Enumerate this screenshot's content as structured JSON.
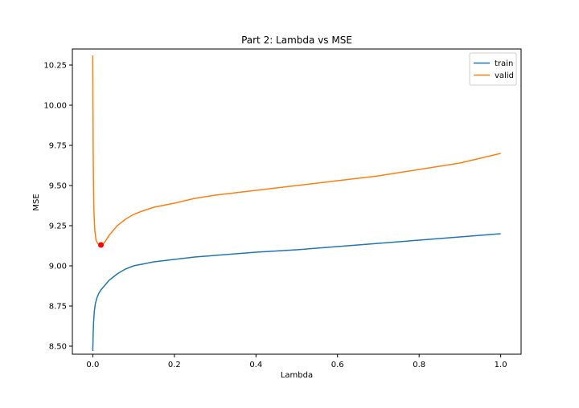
{
  "chart_data": {
    "type": "line",
    "title": "Part 2: Lambda vs MSE",
    "xlabel": "Lambda",
    "ylabel": "MSE",
    "xlim": [
      -0.05,
      1.05
    ],
    "ylim": [
      8.45,
      10.35
    ],
    "xticks": [
      0.0,
      0.2,
      0.4,
      0.6,
      0.8,
      1.0
    ],
    "xtick_labels": [
      "0.0",
      "0.2",
      "0.4",
      "0.6",
      "0.8",
      "1.0"
    ],
    "yticks": [
      8.5,
      8.75,
      9.0,
      9.25,
      9.5,
      9.75,
      10.0,
      10.25
    ],
    "ytick_labels": [
      "8.50",
      "8.75",
      "9.00",
      "9.25",
      "9.50",
      "9.75",
      "10.00",
      "10.25"
    ],
    "grid": false,
    "legend_position": "top-right",
    "series": [
      {
        "name": "train",
        "color": "#1f77b4",
        "x": [
          0.0,
          0.001,
          0.002,
          0.004,
          0.006,
          0.01,
          0.015,
          0.02,
          0.03,
          0.04,
          0.05,
          0.06,
          0.08,
          0.1,
          0.12,
          0.15,
          0.2,
          0.25,
          0.3,
          0.4,
          0.5,
          0.6,
          0.7,
          0.8,
          0.9,
          1.0
        ],
        "y": [
          8.47,
          8.58,
          8.65,
          8.72,
          8.76,
          8.8,
          8.83,
          8.85,
          8.88,
          8.91,
          8.93,
          8.95,
          8.98,
          9.0,
          9.01,
          9.025,
          9.04,
          9.055,
          9.065,
          9.085,
          9.1,
          9.12,
          9.14,
          9.16,
          9.18,
          9.2
        ]
      },
      {
        "name": "valid",
        "color": "#ff7f0e",
        "x": [
          0.0,
          0.001,
          0.002,
          0.003,
          0.005,
          0.008,
          0.012,
          0.016,
          0.02,
          0.025,
          0.03,
          0.04,
          0.05,
          0.06,
          0.08,
          0.1,
          0.12,
          0.15,
          0.2,
          0.25,
          0.3,
          0.4,
          0.5,
          0.6,
          0.7,
          0.8,
          0.9,
          1.0
        ],
        "y": [
          10.31,
          9.7,
          9.45,
          9.33,
          9.22,
          9.16,
          9.14,
          9.13,
          9.13,
          9.135,
          9.15,
          9.19,
          9.22,
          9.25,
          9.29,
          9.32,
          9.34,
          9.365,
          9.39,
          9.42,
          9.44,
          9.47,
          9.5,
          9.53,
          9.56,
          9.6,
          9.64,
          9.7
        ]
      }
    ],
    "annotations": [
      {
        "kind": "marker",
        "x": 0.02,
        "y": 9.13,
        "color": "#ff0000"
      }
    ]
  }
}
